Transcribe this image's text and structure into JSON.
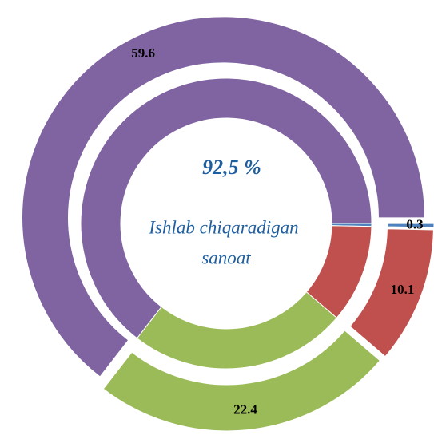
{
  "chart_data": {
    "type": "doughnut",
    "center_value": "92,5 %",
    "center_label": [
      "Ishlab chiqaradigan",
      "sanoat"
    ],
    "categories": [
      null,
      null,
      null,
      null
    ],
    "values": [
      0.3,
      10.1,
      22.4,
      59.6
    ],
    "colors": [
      "#4f81bd",
      "#c0504d",
      "#9bbb59",
      "#8064a2"
    ]
  }
}
